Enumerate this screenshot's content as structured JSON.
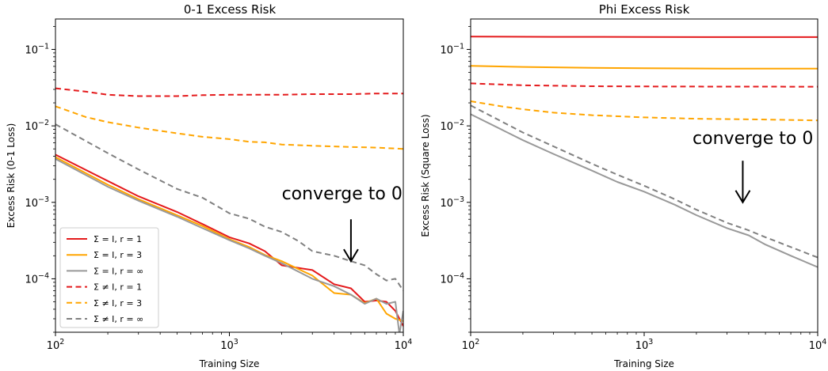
{
  "chart_data": [
    {
      "type": "line",
      "title": "0-1 Excess Risk",
      "xlabel": "Training Size",
      "ylabel": "Excess Risk (0-1 Loss)",
      "xscale": "log",
      "yscale": "log",
      "xlim": [
        100,
        10000
      ],
      "ylim": [
        2e-05,
        0.25
      ],
      "xticks": [
        {
          "value": 100,
          "label": "10^2"
        },
        {
          "value": 1000,
          "label": "10^3"
        },
        {
          "value": 10000,
          "label": "10^4"
        }
      ],
      "yticks": [
        {
          "value": 0.1,
          "label": "10^-1"
        },
        {
          "value": 0.01,
          "label": "10^-2"
        },
        {
          "value": 0.001,
          "label": "10^-3"
        },
        {
          "value": 0.0001,
          "label": "10^-4"
        }
      ],
      "grid": false,
      "legend": "lower-left",
      "annotations": [
        {
          "text": "converge to 0",
          "x": 2000,
          "y": 0.0011,
          "arrow_x": 5000,
          "arrow_y_start": 0.0006,
          "arrow_y_end": 0.00017
        }
      ],
      "series": [
        {
          "name": "Σ = I, r = 1",
          "color": "#e41a1c",
          "dash": "solid",
          "x": [
            100,
            200,
            300,
            500,
            700,
            1000,
            1300,
            1600,
            2000,
            3000,
            4000,
            5000,
            6000,
            7000,
            8000,
            9000,
            10000
          ],
          "y": [
            0.0042,
            0.0019,
            0.0012,
            0.00075,
            0.00052,
            0.00035,
            0.00029,
            0.00023,
            0.00015,
            0.00013,
            8.5e-05,
            7.5e-05,
            5e-05,
            5.2e-05,
            5e-05,
            3.8e-05,
            2.4e-05
          ]
        },
        {
          "name": "Σ = I, r = 3",
          "color": "#ffa500",
          "dash": "solid",
          "x": [
            100,
            200,
            300,
            500,
            700,
            1000,
            1300,
            1600,
            2000,
            3000,
            4000,
            5000,
            6000,
            7000,
            8000,
            9000,
            10000
          ],
          "y": [
            0.0039,
            0.0017,
            0.0011,
            0.00068,
            0.00049,
            0.00033,
            0.00026,
            0.000205,
            0.00017,
            0.00011,
            6.5e-05,
            6.2e-05,
            4.8e-05,
            5.5e-05,
            3.5e-05,
            3e-05,
            2.8e-05
          ]
        },
        {
          "name": "Σ = I, r = ∞",
          "color": "#999999",
          "dash": "solid",
          "x": [
            100,
            200,
            300,
            500,
            700,
            1000,
            1300,
            1600,
            2000,
            3000,
            4000,
            5000,
            6000,
            7000,
            8000,
            9000,
            9500,
            10000
          ],
          "y": [
            0.0037,
            0.0016,
            0.00105,
            0.00065,
            0.00046,
            0.00032,
            0.00025,
            0.0002,
            0.00016,
            0.0001,
            8e-05,
            6.2e-05,
            4.7e-05,
            5.5e-05,
            4.7e-05,
            5e-05,
            1.9e-05,
            3.8e-05
          ]
        },
        {
          "name": "Σ ≠ I, r = 1",
          "color": "#e41a1c",
          "dash": "dashed",
          "x": [
            100,
            150,
            200,
            300,
            500,
            700,
            1000,
            1500,
            2000,
            3000,
            5000,
            7000,
            10000
          ],
          "y": [
            0.031,
            0.028,
            0.0255,
            0.0245,
            0.0245,
            0.0252,
            0.0255,
            0.0255,
            0.0255,
            0.026,
            0.026,
            0.0265,
            0.0265
          ]
        },
        {
          "name": "Σ ≠ I, r = 3",
          "color": "#ffa500",
          "dash": "dashed",
          "x": [
            100,
            150,
            200,
            300,
            500,
            700,
            1000,
            1300,
            1600,
            2000,
            3000,
            5000,
            7000,
            10000
          ],
          "y": [
            0.018,
            0.013,
            0.0112,
            0.0095,
            0.008,
            0.0072,
            0.0067,
            0.0062,
            0.0061,
            0.0057,
            0.0055,
            0.0053,
            0.0052,
            0.005
          ]
        },
        {
          "name": "Σ ≠ I, r = ∞",
          "color": "#808080",
          "dash": "dashed",
          "x": [
            100,
            200,
            300,
            500,
            700,
            1000,
            1300,
            1600,
            2000,
            2500,
            3000,
            4000,
            5000,
            6000,
            7000,
            8000,
            9000,
            10000
          ],
          "y": [
            0.0105,
            0.0044,
            0.0027,
            0.0015,
            0.00115,
            0.00072,
            0.00061,
            0.00048,
            0.00041,
            0.00031,
            0.00023,
            0.0002,
            0.00017,
            0.00015,
            0.000115,
            9.5e-05,
            0.0001,
            7e-05
          ]
        }
      ]
    },
    {
      "type": "line",
      "title": "Phi Excess Risk",
      "xlabel": "Training Size",
      "ylabel": "Excess Risk (Square Loss)",
      "xscale": "log",
      "yscale": "log",
      "xlim": [
        100,
        10000
      ],
      "ylim": [
        2e-05,
        0.25
      ],
      "xticks": [
        {
          "value": 100,
          "label": "10^2"
        },
        {
          "value": 1000,
          "label": "10^3"
        },
        {
          "value": 10000,
          "label": "10^4"
        }
      ],
      "yticks": [
        {
          "value": 0.1,
          "label": "10^-1"
        },
        {
          "value": 0.01,
          "label": "10^-2"
        },
        {
          "value": 0.001,
          "label": "10^-3"
        },
        {
          "value": 0.0001,
          "label": "10^-4"
        }
      ],
      "grid": false,
      "legend": "none",
      "annotations": [
        {
          "text": "converge  to  0",
          "x": 1900,
          "y": 0.0058,
          "arrow_x": 3700,
          "arrow_y_start": 0.0035,
          "arrow_y_end": 0.001
        }
      ],
      "series": [
        {
          "color": "#e41a1c",
          "dash": "solid",
          "x": [
            100,
            300,
            1000,
            3000,
            10000
          ],
          "y": [
            0.147,
            0.146,
            0.1455,
            0.145,
            0.145
          ]
        },
        {
          "color": "#ffa500",
          "dash": "solid",
          "x": [
            100,
            200,
            500,
            1000,
            3000,
            10000
          ],
          "y": [
            0.061,
            0.059,
            0.0575,
            0.0567,
            0.0562,
            0.056
          ]
        },
        {
          "color": "#999999",
          "dash": "solid",
          "x": [
            100,
            200,
            300,
            500,
            700,
            1000,
            1500,
            2000,
            3000,
            4000,
            5000,
            7000,
            10000
          ],
          "y": [
            0.0142,
            0.0065,
            0.0043,
            0.0026,
            0.00185,
            0.00138,
            0.00093,
            0.00068,
            0.00046,
            0.00037,
            0.00028,
            0.0002,
            0.000142
          ]
        },
        {
          "color": "#e41a1c",
          "dash": "dashed",
          "x": [
            100,
            200,
            500,
            1000,
            3000,
            10000
          ],
          "y": [
            0.036,
            0.034,
            0.033,
            0.0328,
            0.0326,
            0.0325
          ]
        },
        {
          "color": "#ffa500",
          "dash": "dashed",
          "x": [
            100,
            150,
            200,
            300,
            500,
            1000,
            2000,
            5000,
            10000
          ],
          "y": [
            0.021,
            0.018,
            0.0165,
            0.0149,
            0.0138,
            0.0129,
            0.0124,
            0.0121,
            0.0118
          ]
        },
        {
          "color": "#808080",
          "dash": "dashed",
          "x": [
            100,
            200,
            300,
            500,
            700,
            1000,
            1500,
            2000,
            3000,
            4000,
            5000,
            7000,
            10000
          ],
          "y": [
            0.0185,
            0.0082,
            0.0054,
            0.0032,
            0.0023,
            0.00165,
            0.0011,
            0.0008,
            0.00054,
            0.00043,
            0.00035,
            0.00026,
            0.00019
          ]
        }
      ]
    }
  ]
}
